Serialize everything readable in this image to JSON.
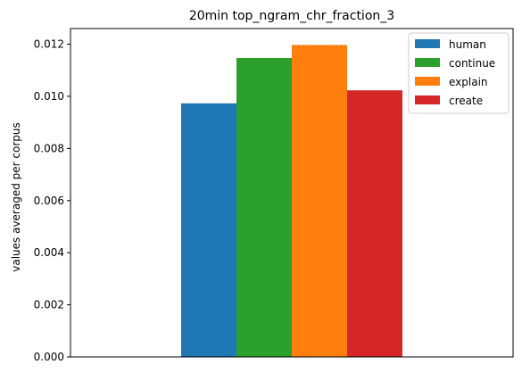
{
  "chart_data": {
    "type": "bar",
    "title": "20min top_ngram_chr_fraction_3",
    "xlabel": "",
    "ylabel": "values averaged per corpus",
    "ylim": [
      0,
      0.0126
    ],
    "yticks": [
      "0.000",
      "0.002",
      "0.004",
      "0.006",
      "0.008",
      "0.010",
      "0.012"
    ],
    "legend_position": "top-right",
    "grid": false,
    "series": [
      {
        "name": "human",
        "value": 0.00973,
        "color": "#1f77b4"
      },
      {
        "name": "continue",
        "value": 0.01147,
        "color": "#2ca02c"
      },
      {
        "name": "explain",
        "value": 0.01197,
        "color": "#ff7f0e"
      },
      {
        "name": "create",
        "value": 0.01023,
        "color": "#d62728"
      }
    ]
  }
}
